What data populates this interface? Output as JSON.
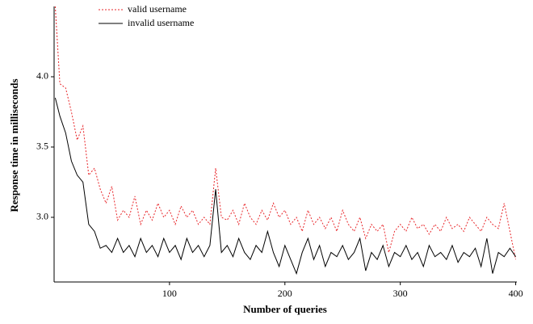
{
  "chart_data": {
    "type": "line",
    "xlabel": "Number of queries",
    "ylabel": "Response time in milliseconds",
    "x": [
      1,
      5,
      10,
      15,
      20,
      25,
      30,
      35,
      40,
      45,
      50,
      55,
      60,
      65,
      70,
      75,
      80,
      85,
      90,
      95,
      100,
      105,
      110,
      115,
      120,
      125,
      130,
      135,
      140,
      145,
      150,
      155,
      160,
      165,
      170,
      175,
      180,
      185,
      190,
      195,
      200,
      205,
      210,
      215,
      220,
      225,
      230,
      235,
      240,
      245,
      250,
      255,
      260,
      265,
      270,
      275,
      280,
      285,
      290,
      295,
      300,
      305,
      310,
      315,
      320,
      325,
      330,
      335,
      340,
      345,
      350,
      355,
      360,
      365,
      370,
      375,
      380,
      385,
      390,
      395,
      400
    ],
    "series": [
      {
        "name": "valid username",
        "color": "#e8262a",
        "dash": true,
        "values": [
          4.5,
          3.95,
          3.92,
          3.75,
          3.55,
          3.65,
          3.3,
          3.35,
          3.2,
          3.1,
          3.22,
          2.98,
          3.05,
          3.0,
          3.15,
          2.95,
          3.05,
          2.98,
          3.1,
          3.0,
          3.05,
          2.95,
          3.08,
          3.0,
          3.05,
          2.95,
          3.0,
          2.95,
          3.35,
          3.0,
          2.98,
          3.05,
          2.95,
          3.1,
          3.0,
          2.95,
          3.05,
          2.98,
          3.1,
          3.0,
          3.05,
          2.95,
          3.0,
          2.9,
          3.05,
          2.95,
          3.0,
          2.92,
          3.0,
          2.9,
          3.05,
          2.95,
          2.9,
          3.0,
          2.85,
          2.95,
          2.9,
          2.95,
          2.75,
          2.9,
          2.95,
          2.9,
          3.0,
          2.92,
          2.95,
          2.88,
          2.95,
          2.9,
          3.0,
          2.92,
          2.95,
          2.9,
          3.0,
          2.95,
          2.9,
          3.0,
          2.95,
          2.92,
          3.1,
          2.9,
          2.7
        ]
      },
      {
        "name": "invalid username",
        "color": "#000000",
        "dash": false,
        "values": [
          3.85,
          3.72,
          3.6,
          3.4,
          3.3,
          3.25,
          2.95,
          2.9,
          2.78,
          2.8,
          2.75,
          2.85,
          2.75,
          2.8,
          2.72,
          2.85,
          2.75,
          2.8,
          2.72,
          2.85,
          2.75,
          2.8,
          2.7,
          2.85,
          2.75,
          2.8,
          2.72,
          2.8,
          3.2,
          2.75,
          2.8,
          2.72,
          2.85,
          2.75,
          2.7,
          2.8,
          2.75,
          2.9,
          2.75,
          2.65,
          2.8,
          2.7,
          2.6,
          2.75,
          2.85,
          2.7,
          2.8,
          2.65,
          2.75,
          2.72,
          2.8,
          2.7,
          2.75,
          2.85,
          2.62,
          2.75,
          2.7,
          2.8,
          2.65,
          2.75,
          2.72,
          2.8,
          2.7,
          2.75,
          2.65,
          2.8,
          2.72,
          2.75,
          2.7,
          2.8,
          2.68,
          2.75,
          2.72,
          2.78,
          2.65,
          2.85,
          2.6,
          2.75,
          2.72,
          2.78,
          2.72
        ]
      }
    ],
    "xlim": [
      0,
      401
    ],
    "ylim": [
      2.54,
      4.5
    ],
    "xticks": [
      100,
      200,
      300,
      400
    ],
    "yticks": [
      {
        "value": 3,
        "label": "3.0"
      },
      3.5,
      {
        "value": 4,
        "label": "4.0"
      }
    ]
  }
}
